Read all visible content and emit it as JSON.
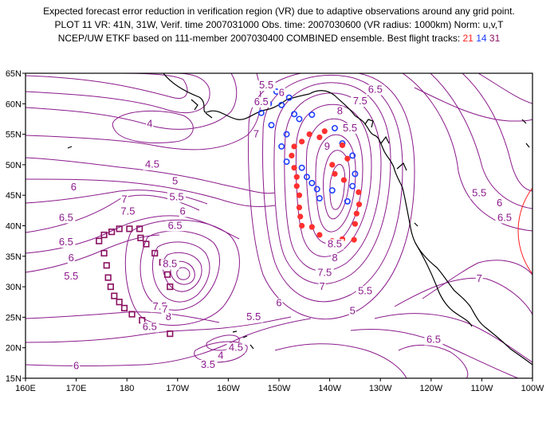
{
  "header": {
    "line1": "Expected forecast error reduction in verification region (VR) due to adaptive observations around any grid point.",
    "line2": "PLOT 11 VR: 41N, 31W, Verif. time 2007031000 Obs. time: 2007030600 (VR radius: 1000km) Norm: u,v,T",
    "line3_prefix": "NCEP/UW ETKF based on 111-member 2007030400 COMBINED ensemble.  Best flight tracks:",
    "track_a": "21",
    "track_b": "14",
    "track_c": "31"
  },
  "map": {
    "lon_range": [
      160,
      260
    ],
    "lat_range": [
      15,
      65
    ],
    "x_tick_labels": [
      "160E",
      "170E",
      "180",
      "170W",
      "160W",
      "150W",
      "140W",
      "130W",
      "120W",
      "110W",
      "100W"
    ],
    "y_tick_labels": [
      "15N",
      "20N",
      "25N",
      "30N",
      "35N",
      "40N",
      "45N",
      "50N",
      "55N",
      "60N",
      "65N"
    ],
    "contour_color": "#8b1a8b",
    "coast_color": "#000000",
    "contour_labels": [
      {
        "text": "5.5",
        "lon": 207.5,
        "lat": 62.5
      },
      {
        "text": "6",
        "lon": 210.5,
        "lat": 61.3
      },
      {
        "text": "6.5",
        "lon": 206.5,
        "lat": 59.8
      },
      {
        "text": "6.5",
        "lon": 229,
        "lat": 61.8
      },
      {
        "text": "7.5",
        "lon": 226,
        "lat": 59.9
      },
      {
        "text": "8",
        "lon": 222,
        "lat": 58.3
      },
      {
        "text": "5.5",
        "lon": 224,
        "lat": 55.5
      },
      {
        "text": "7",
        "lon": 205.5,
        "lat": 54.5
      },
      {
        "text": "9",
        "lon": 219.5,
        "lat": 52.5
      },
      {
        "text": "4",
        "lon": 184.5,
        "lat": 56.2
      },
      {
        "text": "4.5",
        "lon": 185,
        "lat": 49.5
      },
      {
        "text": "5",
        "lon": 189.5,
        "lat": 46.8
      },
      {
        "text": "5.5",
        "lon": 189.8,
        "lat": 44.2
      },
      {
        "text": "6",
        "lon": 191,
        "lat": 41.8
      },
      {
        "text": "6.5",
        "lon": 189.5,
        "lat": 39.5
      },
      {
        "text": "7",
        "lon": 179.5,
        "lat": 43.8
      },
      {
        "text": "7.5",
        "lon": 180.2,
        "lat": 41.8
      },
      {
        "text": "6",
        "lon": 169.5,
        "lat": 45.8
      },
      {
        "text": "6.5",
        "lon": 168,
        "lat": 40.8
      },
      {
        "text": "6.5",
        "lon": 168,
        "lat": 36.8
      },
      {
        "text": "6",
        "lon": 169,
        "lat": 34.2
      },
      {
        "text": "5.5",
        "lon": 169,
        "lat": 31.2
      },
      {
        "text": "8.5",
        "lon": 188.5,
        "lat": 33.2
      },
      {
        "text": "8",
        "lon": 188.2,
        "lat": 24.5
      },
      {
        "text": "7.5",
        "lon": 186.5,
        "lat": 26.2
      },
      {
        "text": "7",
        "lon": 187.5,
        "lat": 25.8
      },
      {
        "text": "6.5",
        "lon": 184.5,
        "lat": 22.9
      },
      {
        "text": "5.5",
        "lon": 205,
        "lat": 24.5
      },
      {
        "text": "4.5",
        "lon": 201.5,
        "lat": 19.5
      },
      {
        "text": "4",
        "lon": 198.5,
        "lat": 18.2
      },
      {
        "text": "3.5",
        "lon": 196,
        "lat": 16.7
      },
      {
        "text": "6",
        "lon": 170,
        "lat": 16.5
      },
      {
        "text": "6",
        "lon": 210,
        "lat": 26.8
      },
      {
        "text": "5",
        "lon": 224.5,
        "lat": 25.5
      },
      {
        "text": "5.5",
        "lon": 227,
        "lat": 28.8
      },
      {
        "text": "8.5",
        "lon": 221,
        "lat": 36.5
      },
      {
        "text": "8",
        "lon": 221,
        "lat": 34.2
      },
      {
        "text": "7.5",
        "lon": 219,
        "lat": 31.8
      },
      {
        "text": "7",
        "lon": 218.5,
        "lat": 29.5
      },
      {
        "text": "5.5",
        "lon": 249.5,
        "lat": 44.8
      },
      {
        "text": "6",
        "lon": 253.5,
        "lat": 43.2
      },
      {
        "text": "6.5",
        "lon": 254.5,
        "lat": 40.8
      },
      {
        "text": "7",
        "lon": 249.5,
        "lat": 30.8
      },
      {
        "text": "6.5",
        "lon": 240.5,
        "lat": 20.8
      }
    ],
    "track_21_points": [
      [
        216,
        55
      ],
      [
        214.5,
        53.8
      ],
      [
        213,
        53
      ],
      [
        212.5,
        51.5
      ],
      [
        213,
        49.5
      ],
      [
        213.5,
        48
      ],
      [
        213.5,
        46.5
      ],
      [
        214,
        45
      ],
      [
        214,
        43
      ],
      [
        214.2,
        41.5
      ],
      [
        214.5,
        40
      ],
      [
        216.5,
        39.8
      ],
      [
        218,
        38.5
      ],
      [
        220.5,
        37.5
      ],
      [
        222.5,
        37.8
      ],
      [
        224.8,
        37.7
      ],
      [
        225,
        40.3
      ],
      [
        225.3,
        42
      ],
      [
        225.8,
        43.5
      ],
      [
        225.7,
        45.5
      ],
      [
        223.5,
        51
      ],
      [
        222.8,
        47.5
      ],
      [
        222.5,
        53.2
      ],
      [
        219,
        55.5
      ],
      [
        218,
        54.5
      ],
      [
        220.5,
        50
      ],
      [
        221,
        48.5
      ]
    ],
    "track_14_points": [
      [
        206.5,
        58.5
      ],
      [
        208,
        60
      ],
      [
        209.5,
        62
      ],
      [
        212,
        61
      ],
      [
        210.5,
        59.8
      ],
      [
        213,
        58.3
      ],
      [
        214,
        57.5
      ],
      [
        216.5,
        58.2
      ],
      [
        211.5,
        55
      ],
      [
        208.5,
        56.5
      ],
      [
        210.5,
        53
      ],
      [
        211.5,
        50.5
      ],
      [
        214.5,
        49.5
      ],
      [
        215.5,
        48
      ],
      [
        216.5,
        47
      ],
      [
        217.5,
        46
      ],
      [
        218,
        44.5
      ],
      [
        220.5,
        45.8
      ],
      [
        223.5,
        44
      ],
      [
        224.5,
        46.5
      ],
      [
        225,
        48.5
      ],
      [
        224.5,
        51.5
      ],
      [
        222.5,
        53.5
      ],
      [
        221,
        56
      ]
    ],
    "track_31_points": [
      [
        174.5,
        37.5
      ],
      [
        175.5,
        38.5
      ],
      [
        177,
        39
      ],
      [
        178.5,
        39.5
      ],
      [
        180.5,
        39.5
      ],
      [
        182.5,
        39.5
      ],
      [
        182.7,
        38
      ],
      [
        183.8,
        37
      ],
      [
        185.5,
        35.5
      ],
      [
        187,
        34
      ],
      [
        188,
        32
      ],
      [
        188.5,
        30
      ],
      [
        176,
        33.5
      ],
      [
        176.3,
        31.5
      ],
      [
        176.8,
        30
      ],
      [
        177.5,
        28.5
      ],
      [
        178.5,
        27.5
      ],
      [
        179.5,
        26.5
      ],
      [
        181,
        25.5
      ],
      [
        183,
        24.5
      ],
      [
        185,
        23.5
      ],
      [
        188.5,
        22.3
      ],
      [
        175.5,
        35.5
      ]
    ]
  }
}
